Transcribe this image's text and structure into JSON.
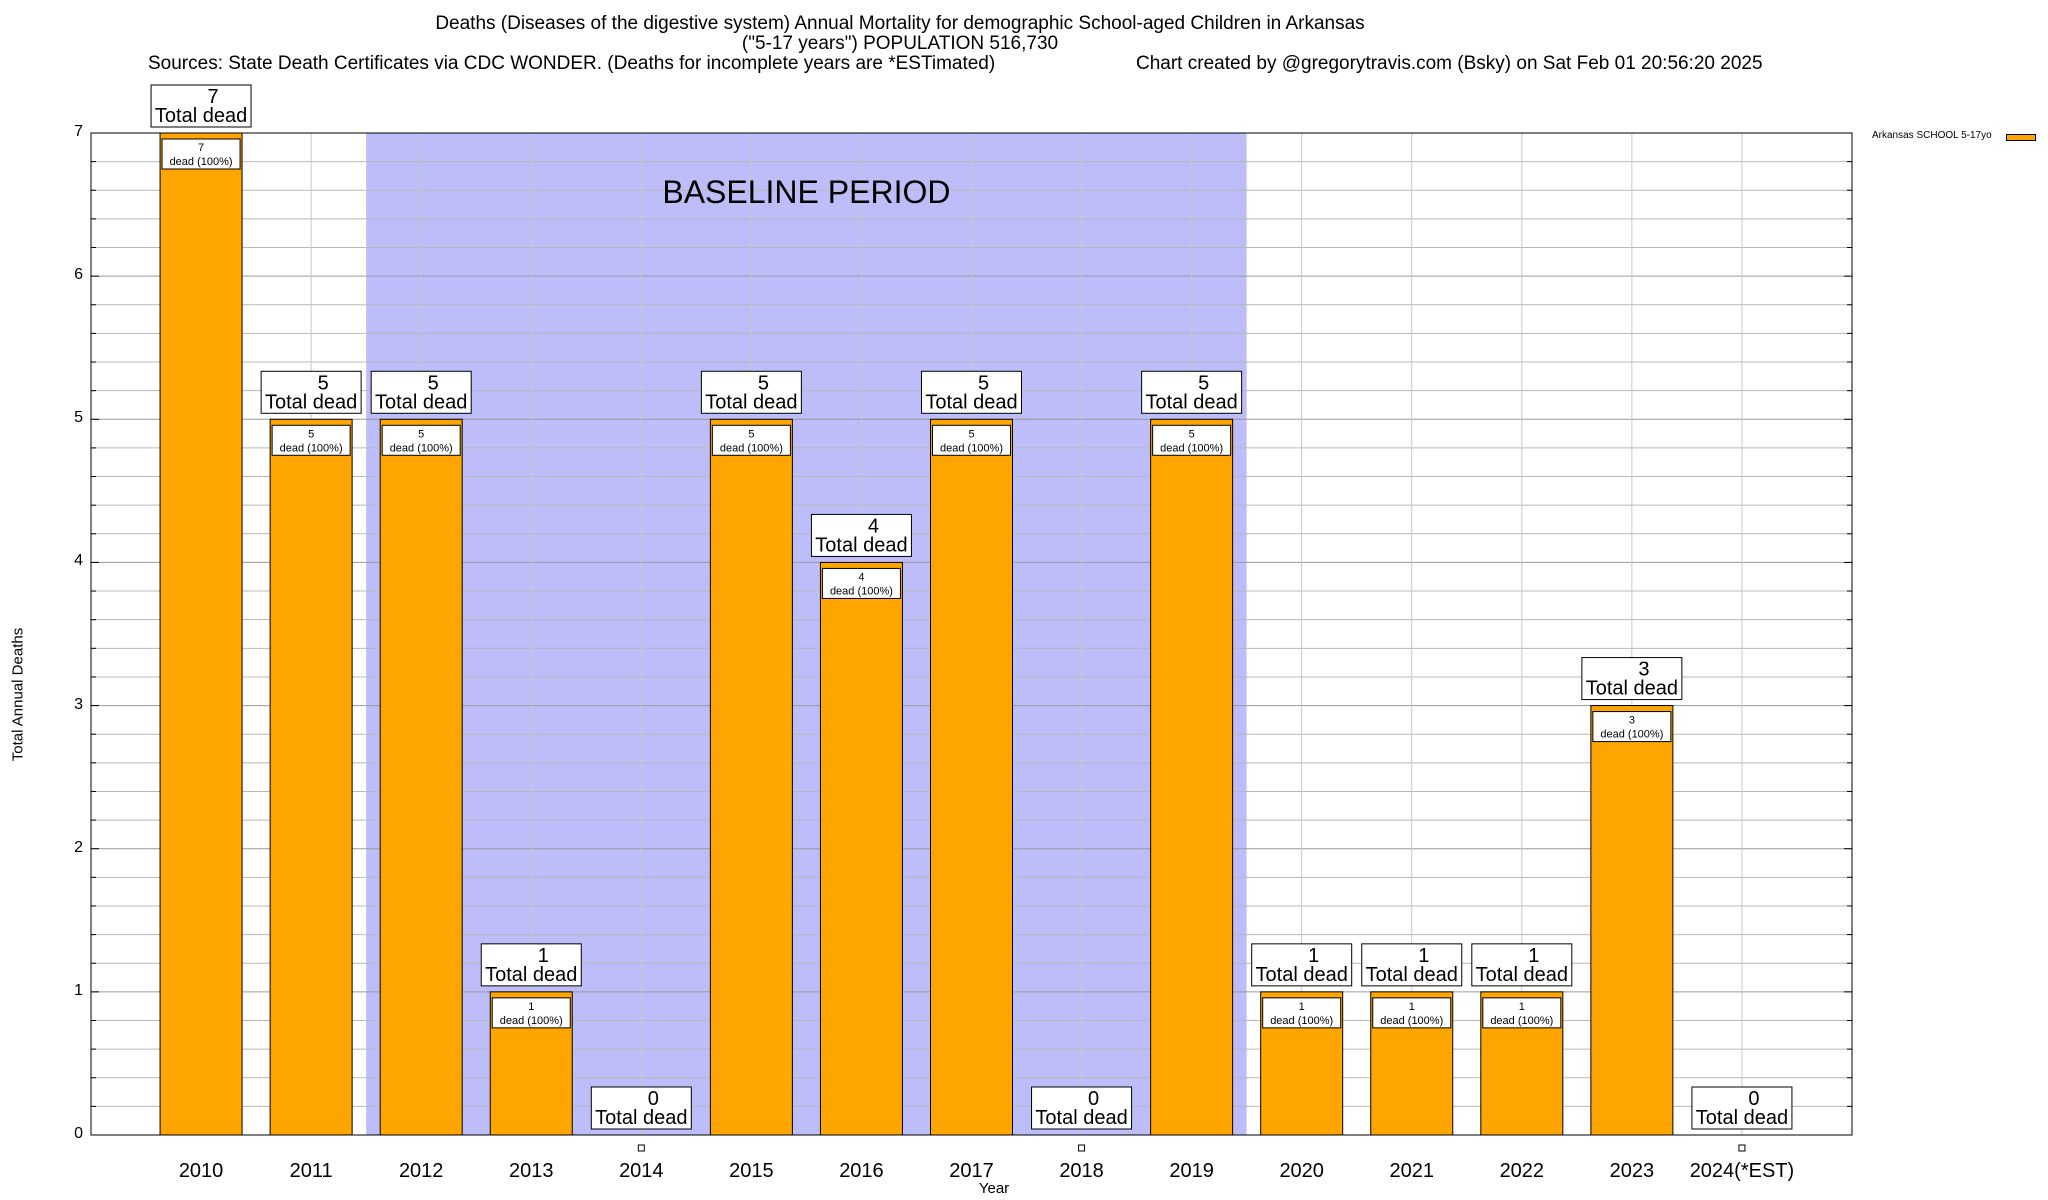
{
  "chart_data": {
    "type": "bar",
    "title_line1": "Deaths (Diseases of the digestive system) Annual Mortality for demographic School-aged Children in Arkansas",
    "title_line2": "(\"5-17 years\") POPULATION 516,730",
    "sources": "Sources: State Death Certificates via CDC WONDER. (Deaths for incomplete years are *ESTimated)",
    "credit": "Chart created by @gregorytravis.com (Bsky) on Sat Feb 01 20:56:20 2025",
    "xlabel": "Year",
    "ylabel": "Total Annual Deaths",
    "ylim": [
      0,
      7
    ],
    "yticks": [
      "0",
      "1",
      "2",
      "3",
      "4",
      "5",
      "6",
      "7"
    ],
    "categories": [
      "2010",
      "2011",
      "2012",
      "2013",
      "2014",
      "2015",
      "2016",
      "2017",
      "2018",
      "2019",
      "2020",
      "2021",
      "2022",
      "2023",
      "2024(*EST)"
    ],
    "series": [
      {
        "name": "Arkansas SCHOOL 5-17yo",
        "values": [
          7,
          5,
          5,
          1,
          0,
          5,
          4,
          5,
          0,
          5,
          1,
          1,
          1,
          3,
          0
        ],
        "color": "#ffa500"
      }
    ],
    "total_label_text": "Total dead",
    "inner_label_text": "dead (100%)",
    "baseline": {
      "label": "BASELINE PERIOD",
      "from": "2012",
      "to": "2019",
      "color": "#bdbdfa"
    },
    "grid": true,
    "legend_position": "top-right"
  }
}
